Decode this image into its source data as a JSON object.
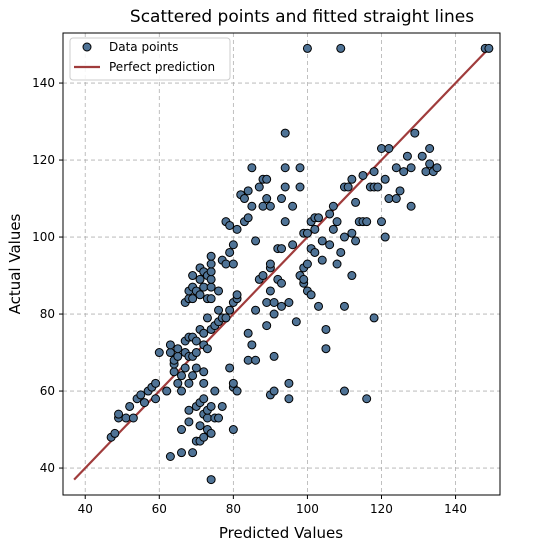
{
  "chart_data": {
    "type": "scatter",
    "title": "Scattered points and fitted straight lines",
    "xlabel": "Predicted Values",
    "ylabel": "Actual Values",
    "xlim": [
      34,
      152
    ],
    "ylim": [
      33,
      153
    ],
    "xticks": [
      40,
      60,
      80,
      100,
      120,
      140
    ],
    "yticks": [
      40,
      60,
      80,
      100,
      120,
      140
    ],
    "grid": true,
    "legend_position": "top-left",
    "colors": {
      "points": "#4f7396",
      "line": "#a03c3c"
    },
    "series": [
      {
        "name": "Data points",
        "kind": "scatter",
        "points": [
          [
            47,
            48
          ],
          [
            48,
            49
          ],
          [
            49,
            53
          ],
          [
            49,
            54
          ],
          [
            51,
            53
          ],
          [
            52,
            56
          ],
          [
            53,
            53
          ],
          [
            54,
            58
          ],
          [
            55,
            59
          ],
          [
            56,
            57
          ],
          [
            57,
            60
          ],
          [
            58,
            61
          ],
          [
            59,
            58
          ],
          [
            59,
            62
          ],
          [
            60,
            70
          ],
          [
            62,
            60
          ],
          [
            63,
            43
          ],
          [
            63,
            70
          ],
          [
            63,
            72
          ],
          [
            64,
            65
          ],
          [
            64,
            67
          ],
          [
            64,
            68
          ],
          [
            65,
            62
          ],
          [
            65,
            69
          ],
          [
            65,
            71
          ],
          [
            66,
            44
          ],
          [
            66,
            50
          ],
          [
            66,
            60
          ],
          [
            66,
            64
          ],
          [
            67,
            66
          ],
          [
            67,
            70
          ],
          [
            67,
            73
          ],
          [
            67,
            83
          ],
          [
            68,
            52
          ],
          [
            68,
            55
          ],
          [
            68,
            62
          ],
          [
            68,
            69
          ],
          [
            68,
            74
          ],
          [
            68,
            84
          ],
          [
            68,
            86
          ],
          [
            69,
            44
          ],
          [
            69,
            64
          ],
          [
            69,
            69
          ],
          [
            69,
            74
          ],
          [
            69,
            84
          ],
          [
            69,
            87
          ],
          [
            69,
            90
          ],
          [
            70,
            47
          ],
          [
            70,
            56
          ],
          [
            70,
            66
          ],
          [
            70,
            70
          ],
          [
            70,
            73
          ],
          [
            70,
            86
          ],
          [
            71,
            47
          ],
          [
            71,
            51
          ],
          [
            71,
            57
          ],
          [
            71,
            76
          ],
          [
            71,
            85
          ],
          [
            71,
            89
          ],
          [
            71,
            92
          ],
          [
            72,
            48
          ],
          [
            72,
            54
          ],
          [
            72,
            58
          ],
          [
            72,
            62
          ],
          [
            72,
            65
          ],
          [
            72,
            72
          ],
          [
            72,
            75
          ],
          [
            72,
            87
          ],
          [
            72,
            91
          ],
          [
            73,
            50
          ],
          [
            73,
            53
          ],
          [
            73,
            55
          ],
          [
            73,
            71
          ],
          [
            73,
            79
          ],
          [
            73,
            84
          ],
          [
            73,
            90
          ],
          [
            74,
            37
          ],
          [
            74,
            49
          ],
          [
            74,
            56
          ],
          [
            74,
            76
          ],
          [
            74,
            84
          ],
          [
            74,
            87
          ],
          [
            74,
            89
          ],
          [
            74,
            91
          ],
          [
            74,
            93
          ],
          [
            74,
            95
          ],
          [
            75,
            53
          ],
          [
            75,
            60
          ],
          [
            75,
            77
          ],
          [
            76,
            53
          ],
          [
            76,
            78
          ],
          [
            76,
            81
          ],
          [
            76,
            86
          ],
          [
            77,
            56
          ],
          [
            77,
            79
          ],
          [
            77,
            94
          ],
          [
            78,
            79
          ],
          [
            78,
            93
          ],
          [
            78,
            104
          ],
          [
            79,
            66
          ],
          [
            79,
            81
          ],
          [
            79,
            96
          ],
          [
            79,
            103
          ],
          [
            80,
            50
          ],
          [
            80,
            61
          ],
          [
            80,
            62
          ],
          [
            80,
            83
          ],
          [
            80,
            93
          ],
          [
            80,
            98
          ],
          [
            81,
            60
          ],
          [
            81,
            84
          ],
          [
            81,
            85
          ],
          [
            81,
            102
          ],
          [
            82,
            111
          ],
          [
            83,
            104
          ],
          [
            83,
            110
          ],
          [
            84,
            68
          ],
          [
            84,
            75
          ],
          [
            84,
            105
          ],
          [
            84,
            112
          ],
          [
            85,
            72
          ],
          [
            85,
            108
          ],
          [
            85,
            118
          ],
          [
            86,
            68
          ],
          [
            86,
            81
          ],
          [
            86,
            99
          ],
          [
            87,
            89
          ],
          [
            87,
            113
          ],
          [
            88,
            90
          ],
          [
            88,
            108
          ],
          [
            88,
            115
          ],
          [
            89,
            77
          ],
          [
            89,
            83
          ],
          [
            89,
            110
          ],
          [
            89,
            115
          ],
          [
            90,
            59
          ],
          [
            90,
            86
          ],
          [
            90,
            92
          ],
          [
            90,
            93
          ],
          [
            90,
            108
          ],
          [
            91,
            60
          ],
          [
            91,
            69
          ],
          [
            91,
            80
          ],
          [
            91,
            83
          ],
          [
            92,
            89
          ],
          [
            92,
            97
          ],
          [
            93,
            82
          ],
          [
            93,
            88
          ],
          [
            93,
            97
          ],
          [
            93,
            110
          ],
          [
            94,
            104
          ],
          [
            94,
            113
          ],
          [
            94,
            118
          ],
          [
            94,
            127
          ],
          [
            95,
            58
          ],
          [
            95,
            62
          ],
          [
            95,
            83
          ],
          [
            96,
            98
          ],
          [
            96,
            108
          ],
          [
            97,
            78
          ],
          [
            98,
            90
          ],
          [
            98,
            113
          ],
          [
            98,
            118
          ],
          [
            99,
            88
          ],
          [
            99,
            89
          ],
          [
            99,
            92
          ],
          [
            99,
            101
          ],
          [
            100,
            86
          ],
          [
            100,
            93
          ],
          [
            100,
            101
          ],
          [
            100,
            149
          ],
          [
            101,
            85
          ],
          [
            101,
            97
          ],
          [
            101,
            104
          ],
          [
            102,
            96
          ],
          [
            102,
            102
          ],
          [
            102,
            105
          ],
          [
            103,
            82
          ],
          [
            103,
            105
          ],
          [
            104,
            94
          ],
          [
            104,
            99
          ],
          [
            105,
            71
          ],
          [
            105,
            76
          ],
          [
            106,
            98
          ],
          [
            106,
            106
          ],
          [
            107,
            102
          ],
          [
            107,
            108
          ],
          [
            108,
            93
          ],
          [
            108,
            104
          ],
          [
            109,
            96
          ],
          [
            109,
            149
          ],
          [
            110,
            60
          ],
          [
            110,
            82
          ],
          [
            110,
            100
          ],
          [
            110,
            113
          ],
          [
            111,
            113
          ],
          [
            112,
            90
          ],
          [
            112,
            101
          ],
          [
            112,
            115
          ],
          [
            113,
            99
          ],
          [
            113,
            109
          ],
          [
            114,
            104
          ],
          [
            115,
            116
          ],
          [
            115,
            104
          ],
          [
            116,
            58
          ],
          [
            116,
            104
          ],
          [
            117,
            113
          ],
          [
            118,
            79
          ],
          [
            118,
            113
          ],
          [
            118,
            117
          ],
          [
            119,
            113
          ],
          [
            120,
            104
          ],
          [
            120,
            123
          ],
          [
            121,
            100
          ],
          [
            121,
            115
          ],
          [
            122,
            110
          ],
          [
            122,
            123
          ],
          [
            124,
            110
          ],
          [
            124,
            118
          ],
          [
            125,
            112
          ],
          [
            126,
            117
          ],
          [
            127,
            121
          ],
          [
            128,
            108
          ],
          [
            128,
            118
          ],
          [
            129,
            127
          ],
          [
            131,
            121
          ],
          [
            132,
            117
          ],
          [
            133,
            119
          ],
          [
            133,
            123
          ],
          [
            134,
            117
          ],
          [
            135,
            118
          ],
          [
            148,
            149
          ],
          [
            149,
            149
          ]
        ]
      },
      {
        "name": "Perfect prediction",
        "kind": "line",
        "points": [
          [
            37,
            37
          ],
          [
            149,
            149
          ]
        ]
      }
    ]
  }
}
